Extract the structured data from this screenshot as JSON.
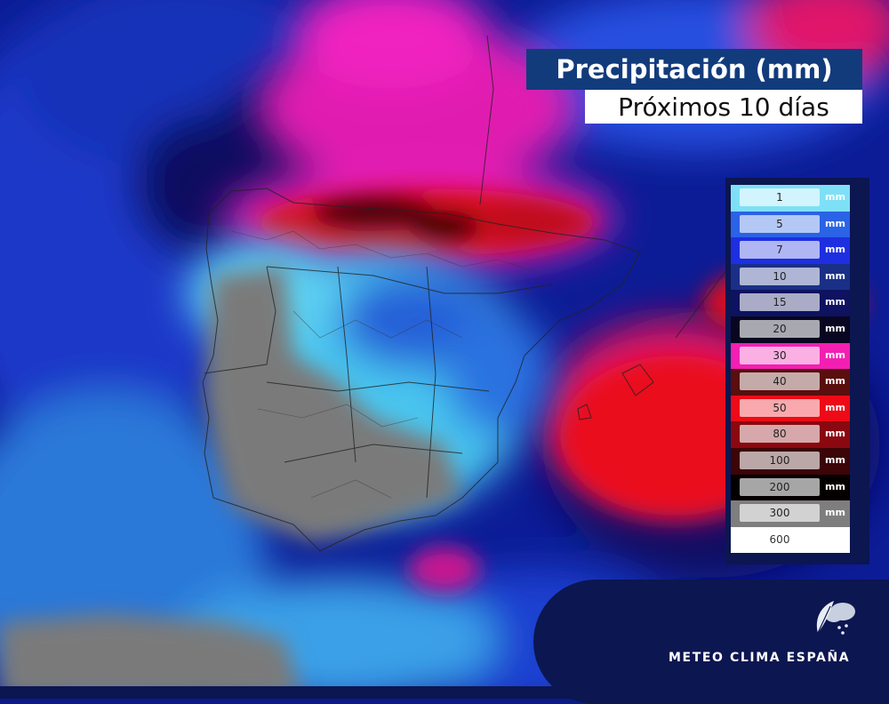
{
  "title": "Precipitación (mm)",
  "subtitle": "Próximos 10 días",
  "legend": {
    "unit": "mm",
    "items": [
      {
        "value": "1",
        "color": "#7ee0f6"
      },
      {
        "value": "5",
        "color": "#2a63e6"
      },
      {
        "value": "7",
        "color": "#1d2fe0"
      },
      {
        "value": "10",
        "color": "#1a2f86"
      },
      {
        "value": "15",
        "color": "#0e1260"
      },
      {
        "value": "20",
        "color": "#080620"
      },
      {
        "value": "30",
        "color": "#f21fb2"
      },
      {
        "value": "40",
        "color": "#5a0e0e"
      },
      {
        "value": "50",
        "color": "#ee0a16"
      },
      {
        "value": "80",
        "color": "#8a0810"
      },
      {
        "value": "100",
        "color": "#3c0508"
      },
      {
        "value": "200",
        "color": "#050000"
      },
      {
        "value": "300",
        "color": "#7e7e7e"
      },
      {
        "value": "600",
        "color": "#ffffff"
      }
    ]
  },
  "brand": {
    "name": "METEO CLIMA ESPAÑA",
    "icon": "weather-rain-icon"
  }
}
